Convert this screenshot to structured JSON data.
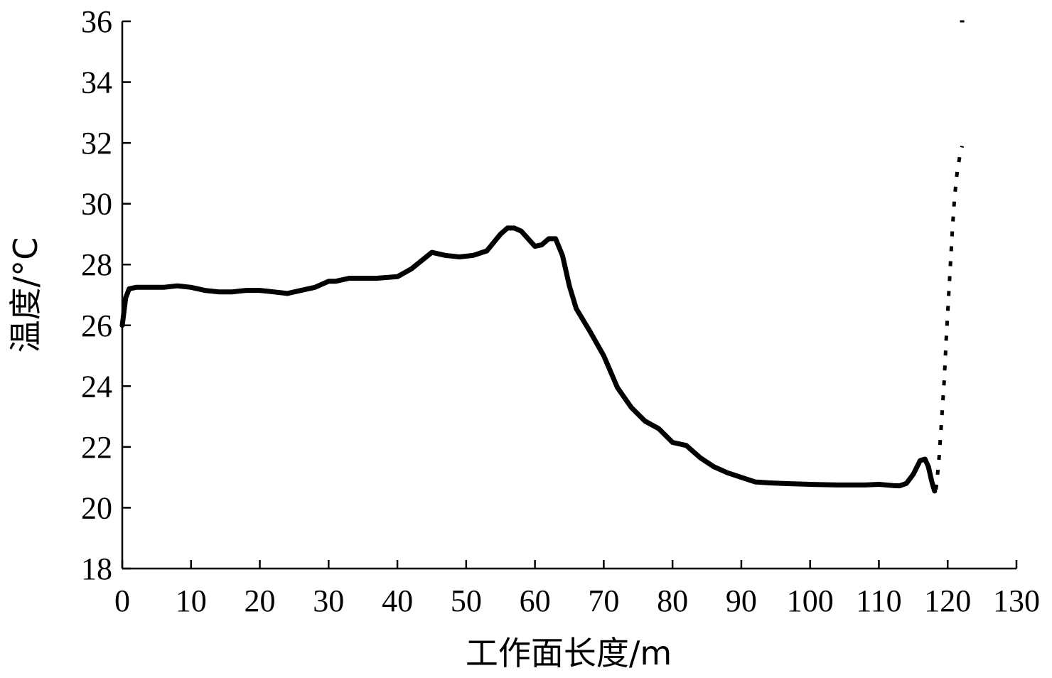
{
  "chart_data": {
    "type": "line",
    "title": "",
    "xlabel": "工作面长度/m",
    "ylabel": "温度/°C",
    "xlim": [
      0,
      130
    ],
    "ylim": [
      18,
      36
    ],
    "xticks": [
      "0",
      "10",
      "20",
      "30",
      "40",
      "50",
      "60",
      "70",
      "80",
      "90",
      "100",
      "110",
      "120",
      "130"
    ],
    "yticks": [
      "18",
      "20",
      "22",
      "24",
      "26",
      "28",
      "30",
      "32",
      "34",
      "36"
    ],
    "grid": false,
    "legend": "none",
    "line_color": "#000000",
    "series": [
      {
        "x": [
          0,
          0.5,
          1,
          2,
          4,
          6,
          8,
          10,
          12,
          14,
          16,
          18,
          20,
          22,
          24,
          26,
          28,
          30,
          31,
          33,
          35,
          37,
          40,
          42,
          45,
          47,
          49,
          51,
          53,
          55,
          56,
          57,
          58,
          60,
          61,
          62,
          63,
          64,
          65,
          66,
          68,
          70,
          72,
          74,
          76,
          78,
          80,
          82,
          84,
          86,
          88,
          90,
          92,
          94,
          96,
          100,
          104,
          108,
          110,
          112,
          113,
          114,
          115,
          116,
          116.7,
          117.2,
          117.7,
          118.1
        ],
        "y": [
          26.0,
          26.9,
          27.2,
          27.25,
          27.25,
          27.25,
          27.3,
          27.25,
          27.15,
          27.1,
          27.1,
          27.15,
          27.15,
          27.1,
          27.05,
          27.15,
          27.25,
          27.45,
          27.45,
          27.55,
          27.55,
          27.55,
          27.6,
          27.85,
          28.4,
          28.3,
          28.25,
          28.3,
          28.45,
          29.0,
          29.2,
          29.2,
          29.1,
          28.6,
          28.65,
          28.85,
          28.85,
          28.3,
          27.3,
          26.55,
          25.8,
          25.0,
          23.95,
          23.3,
          22.85,
          22.6,
          22.15,
          22.05,
          21.65,
          21.35,
          21.15,
          21.0,
          20.85,
          20.82,
          20.8,
          20.77,
          20.75,
          20.75,
          20.77,
          20.73,
          20.72,
          20.8,
          21.1,
          21.55,
          21.6,
          21.35,
          20.85,
          20.55
        ]
      },
      {
        "x": [
          118.3,
          118.7,
          119.1,
          119.5,
          119.8,
          120.1,
          120.4,
          120.7,
          121.0,
          121.4,
          121.8,
          122.1
        ],
        "y": [
          20.6,
          21.5,
          22.8,
          24.2,
          25.6,
          26.8,
          28.0,
          29.2,
          30.2,
          31.1,
          31.6,
          31.9
        ]
      },
      {
        "x": [
          122.1
        ],
        "y": [
          36.0
        ]
      }
    ]
  }
}
